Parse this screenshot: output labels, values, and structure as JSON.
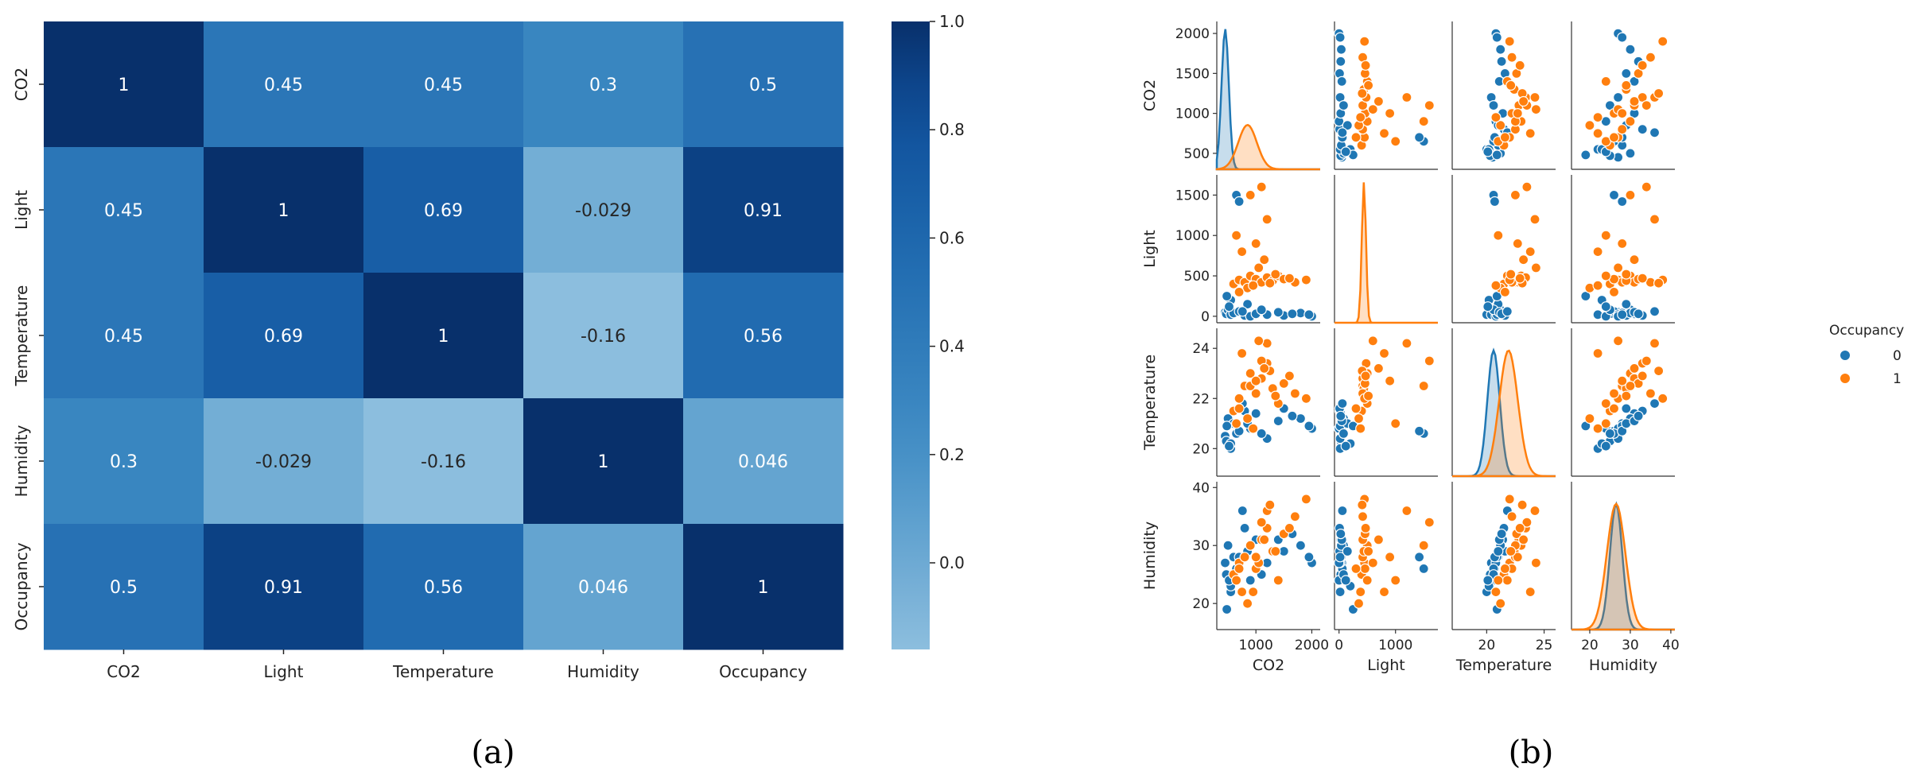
{
  "chart_data": [
    {
      "type": "heatmap",
      "panel_label": "(a)",
      "categories": [
        "CO2",
        "Light",
        "Temperature",
        "Humidity",
        "Occupancy"
      ],
      "matrix": [
        [
          1,
          0.45,
          0.45,
          0.3,
          0.5
        ],
        [
          0.45,
          1,
          0.69,
          -0.029,
          0.91
        ],
        [
          0.45,
          0.69,
          1,
          -0.16,
          0.56
        ],
        [
          0.3,
          -0.029,
          -0.16,
          1,
          0.046
        ],
        [
          0.5,
          0.91,
          0.56,
          0.046,
          1
        ]
      ],
      "labels": [
        [
          "1",
          "0.45",
          "0.45",
          "0.3",
          "0.5"
        ],
        [
          "0.45",
          "1",
          "0.69",
          "-0.029",
          "0.91"
        ],
        [
          "0.45",
          "0.69",
          "1",
          "-0.16",
          "0.56"
        ],
        [
          "0.3",
          "-0.029",
          "-0.16",
          "1",
          "0.046"
        ],
        [
          "0.5",
          "0.91",
          "0.56",
          "0.046",
          "1"
        ]
      ],
      "colorbar": {
        "colormap": "Blues",
        "min": -0.16,
        "max": 1.0,
        "ticks": [
          0.0,
          0.2,
          0.4,
          0.6,
          0.8,
          1.0
        ],
        "tick_labels": [
          "0.0",
          "0.2",
          "0.4",
          "0.6",
          "0.8",
          "1.0"
        ]
      }
    },
    {
      "type": "scatter",
      "subtype": "pairplot",
      "panel_label": "(b)",
      "variables": [
        "CO2",
        "Light",
        "Temperature",
        "Humidity"
      ],
      "axes": {
        "CO2": {
          "range": [
            300,
            2150
          ],
          "ticks": [
            500,
            1000,
            1500,
            2000
          ],
          "tick_labels": [
            "500",
            "1000",
            "1500",
            "2000"
          ],
          "x_ticks": [
            1000,
            2000
          ],
          "x_tick_labels": [
            "1000",
            "2000"
          ]
        },
        "Light": {
          "range": [
            -80,
            1750
          ],
          "ticks": [
            0,
            500,
            1000,
            1500
          ],
          "tick_labels": [
            "0",
            "500",
            "1000",
            "1500"
          ],
          "x_ticks": [
            0,
            1000
          ],
          "x_tick_labels": [
            "0",
            "1000"
          ]
        },
        "Temperature": {
          "range": [
            18.9,
            24.8
          ],
          "ticks": [
            20,
            22,
            24
          ],
          "tick_labels": [
            "20",
            "22",
            "24"
          ],
          "x_range": [
            17,
            26
          ],
          "x_ticks": [
            20,
            25
          ],
          "x_tick_labels": [
            "20",
            "25"
          ]
        },
        "Humidity": {
          "range": [
            15.5,
            41
          ],
          "ticks": [
            20,
            30,
            40
          ],
          "tick_labels": [
            "20",
            "30",
            "40"
          ],
          "x_ticks": [
            20,
            30,
            40
          ],
          "x_tick_labels": [
            "20",
            "30",
            "40"
          ]
        }
      },
      "legend": {
        "title": "Occupancy",
        "placement": "right",
        "entries": [
          {
            "label": "0",
            "color": "#1f77b4"
          },
          {
            "label": "1",
            "color": "#ff7f0e"
          }
        ]
      },
      "series": [
        {
          "name": "0",
          "color": "#1f77b4",
          "points": [
            [
              450,
              50,
              20.5,
              27
            ],
            [
              470,
              30,
              20.3,
              25
            ],
            [
              500,
              80,
              21.2,
              30
            ],
            [
              550,
              20,
              20.0,
              22
            ],
            [
              600,
              40,
              21.0,
              28
            ],
            [
              700,
              60,
              20.7,
              26
            ],
            [
              800,
              10,
              21.5,
              33
            ],
            [
              900,
              0,
              20.8,
              24
            ],
            [
              1000,
              30,
              21.4,
              31
            ],
            [
              1200,
              20,
              20.4,
              27
            ],
            [
              1500,
              10,
              21.6,
              29
            ],
            [
              1800,
              40,
              21.2,
              30
            ],
            [
              2000,
              0,
              20.8,
              27
            ],
            [
              1950,
              20,
              20.9,
              28
            ],
            [
              650,
              1500,
              20.6,
              26
            ],
            [
              700,
              1420,
              20.7,
              28
            ],
            [
              550,
              200,
              20.2,
              23
            ],
            [
              850,
              150,
              21.0,
              29
            ],
            [
              1100,
              80,
              20.6,
              25
            ],
            [
              1400,
              50,
              21.1,
              31
            ],
            [
              1650,
              30,
              21.3,
              32
            ],
            [
              480,
              250,
              20.9,
              19
            ],
            [
              520,
              120,
              20.1,
              24
            ],
            [
              760,
              60,
              21.8,
              36
            ]
          ]
        },
        {
          "name": "1",
          "color": "#ff7f0e",
          "points": [
            [
              600,
              400,
              21.5,
              25
            ],
            [
              700,
              450,
              22.0,
              27
            ],
            [
              800,
              420,
              22.5,
              28
            ],
            [
              900,
              500,
              23.0,
              30
            ],
            [
              1000,
              460,
              22.2,
              26
            ],
            [
              1100,
              420,
              22.8,
              31
            ],
            [
              1200,
              480,
              23.4,
              33
            ],
            [
              1300,
              440,
              22.4,
              29
            ],
            [
              1400,
              500,
              21.8,
              24
            ],
            [
              1500,
              460,
              22.6,
              32
            ],
            [
              1700,
              420,
              22.2,
              35
            ],
            [
              1900,
              450,
              22.0,
              38
            ],
            [
              650,
              1000,
              21.0,
              24
            ],
            [
              900,
              1500,
              22.5,
              30
            ],
            [
              1100,
              1600,
              23.5,
              34
            ],
            [
              1200,
              1200,
              24.2,
              36
            ],
            [
              750,
              800,
              23.8,
              22
            ],
            [
              1050,
              600,
              24.3,
              27
            ],
            [
              850,
              350,
              21.2,
              20
            ],
            [
              950,
              380,
              20.8,
              22
            ],
            [
              1250,
              410,
              23.1,
              37
            ],
            [
              1600,
              470,
              22.9,
              33
            ],
            [
              1000,
              900,
              22.7,
              28
            ],
            [
              1150,
              700,
              23.2,
              31
            ],
            [
              700,
              300,
              21.6,
              26
            ],
            [
              1350,
              520,
              22.1,
              29
            ]
          ]
        }
      ],
      "density": {
        "CO2": {
          "0_peak": 450,
          "1_peak": 850
        },
        "Light": {
          "1_peak": 440
        },
        "Temperature": {
          "0_peak": 20.6,
          "1_peak": 21.9
        },
        "Humidity": {
          "0_peak": 26.5,
          "1_peak": 26.5
        }
      }
    }
  ]
}
